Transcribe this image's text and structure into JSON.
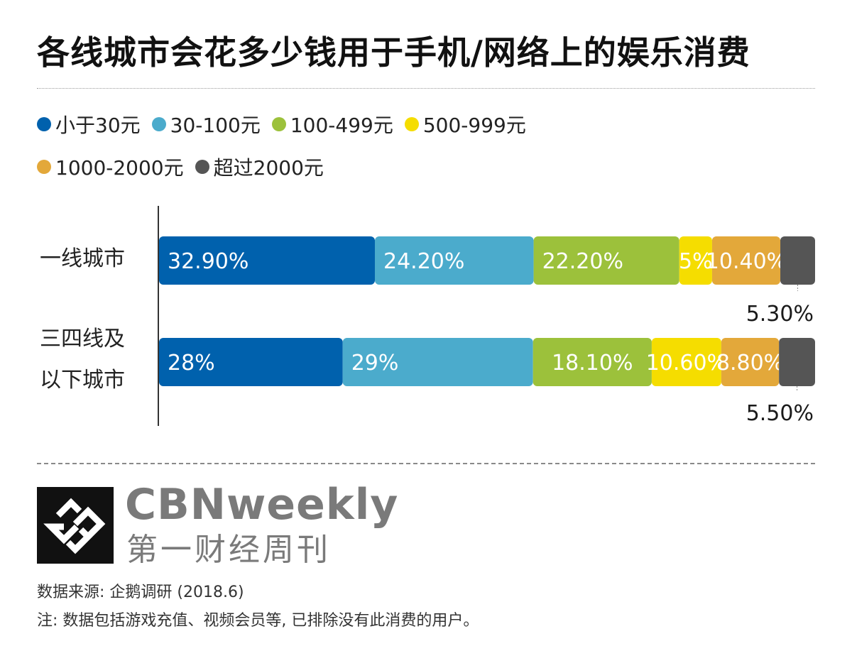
{
  "title": "各线城市会花多少钱用于手机/网络上的娱乐消费",
  "legend": [
    {
      "label": "小于30元",
      "color": "#0061AD"
    },
    {
      "label": "30-100元",
      "color": "#4BABCC"
    },
    {
      "label": "100-499元",
      "color": "#9CC13B"
    },
    {
      "label": "500-999元",
      "color": "#F5DD00"
    },
    {
      "label": "1000-2000元",
      "color": "#E3A83A"
    },
    {
      "label": "超过2000元",
      "color": "#555555"
    }
  ],
  "rows": [
    {
      "label_lines": [
        "一线城市"
      ]
    },
    {
      "label_lines": [
        "三四线及",
        "以下城市"
      ]
    }
  ],
  "chart_data": {
    "type": "bar",
    "orientation": "horizontal",
    "stacked": true,
    "categories": [
      "一线城市",
      "三四线及以下城市"
    ],
    "series": [
      {
        "name": "小于30元",
        "values": [
          32.9,
          28.0
        ],
        "labels": [
          "32.90%",
          "28%"
        ],
        "color": "#0061AD"
      },
      {
        "name": "30-100元",
        "values": [
          24.2,
          29.0
        ],
        "labels": [
          "24.20%",
          "29%"
        ],
        "color": "#4BABCC"
      },
      {
        "name": "100-499元",
        "values": [
          22.2,
          18.1
        ],
        "labels": [
          "22.20%",
          "18.10%"
        ],
        "color": "#9CC13B"
      },
      {
        "name": "500-999元",
        "values": [
          5.0,
          10.6
        ],
        "labels": [
          "5%",
          "10.60%"
        ],
        "color": "#F5DD00"
      },
      {
        "name": "1000-2000元",
        "values": [
          10.4,
          8.8
        ],
        "labels": [
          "10.40%",
          "8.80%"
        ],
        "color": "#E3A83A"
      },
      {
        "name": "超过2000元",
        "values": [
          5.3,
          5.5
        ],
        "labels": [
          "5.30%",
          "5.50%"
        ],
        "color": "#555555"
      }
    ],
    "xlim": [
      0,
      100
    ],
    "legend": "top",
    "grid": false
  },
  "brand": {
    "en": "CBNweekly",
    "cn": "第一财经周刊"
  },
  "source": "数据来源: 企鹅调研 (2018.6)",
  "note": "注: 数据包括游戏充值、视频会员等, 已排除没有此消费的用户。"
}
